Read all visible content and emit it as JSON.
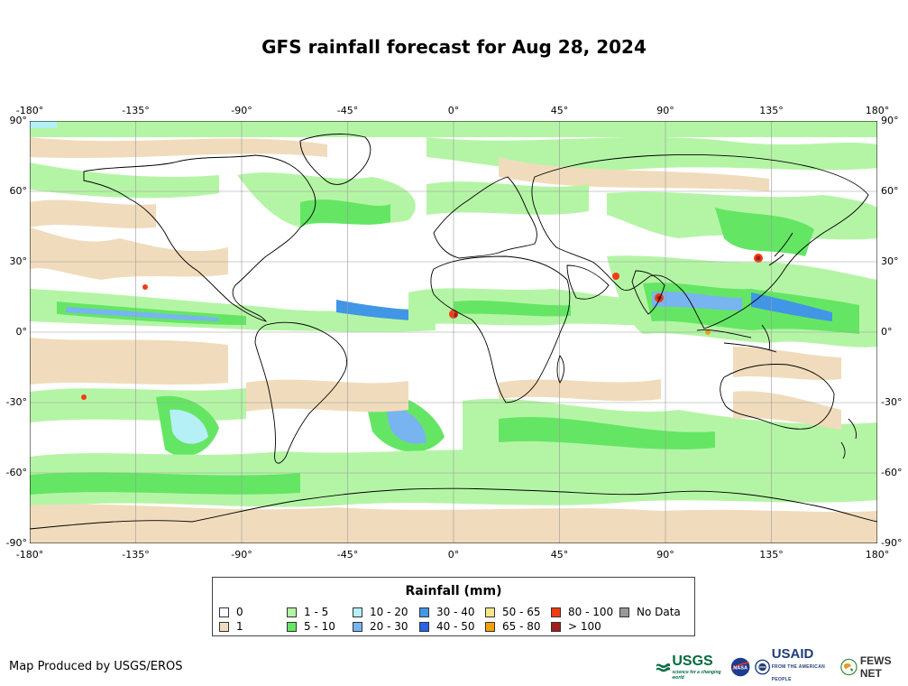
{
  "title": "GFS rainfall forecast for Aug 28, 2024",
  "longitude_ticks": [
    "-180°",
    "-135°",
    "-90°",
    "-45°",
    "0°",
    "45°",
    "90°",
    "135°",
    "180°"
  ],
  "latitude_ticks": [
    "90°",
    "60°",
    "30°",
    "0°",
    "-30°",
    "-60°",
    "-90°"
  ],
  "legend": {
    "title": "Rainfall (mm)",
    "items": [
      {
        "label": "0",
        "color": "#ffffff"
      },
      {
        "label": "1",
        "color": "#f0dcbc"
      },
      {
        "label": "1 - 5",
        "color": "#b4f5a5"
      },
      {
        "label": "5 - 10",
        "color": "#64e664"
      },
      {
        "label": "10 - 20",
        "color": "#b4f0f5"
      },
      {
        "label": "20 - 30",
        "color": "#78b4f0"
      },
      {
        "label": "30 - 40",
        "color": "#4196e6"
      },
      {
        "label": "40 - 50",
        "color": "#2864e6"
      },
      {
        "label": "50 - 65",
        "color": "#f5e687"
      },
      {
        "label": "65 - 80",
        "color": "#f5a00a"
      },
      {
        "label": "80 - 100",
        "color": "#f03c14"
      },
      {
        "label": "> 100",
        "color": "#a01e1e"
      },
      {
        "label": "No Data",
        "color": "#999999"
      }
    ]
  },
  "credit": "Map Produced by USGS/EROS",
  "logos": {
    "usgs": "USGS",
    "usgs_tagline": "science for a changing world",
    "nasa": "NASA",
    "usaid": "USAID",
    "usaid_tagline": "FROM THE AMERICAN PEOPLE",
    "fews": "FEWS NET"
  }
}
